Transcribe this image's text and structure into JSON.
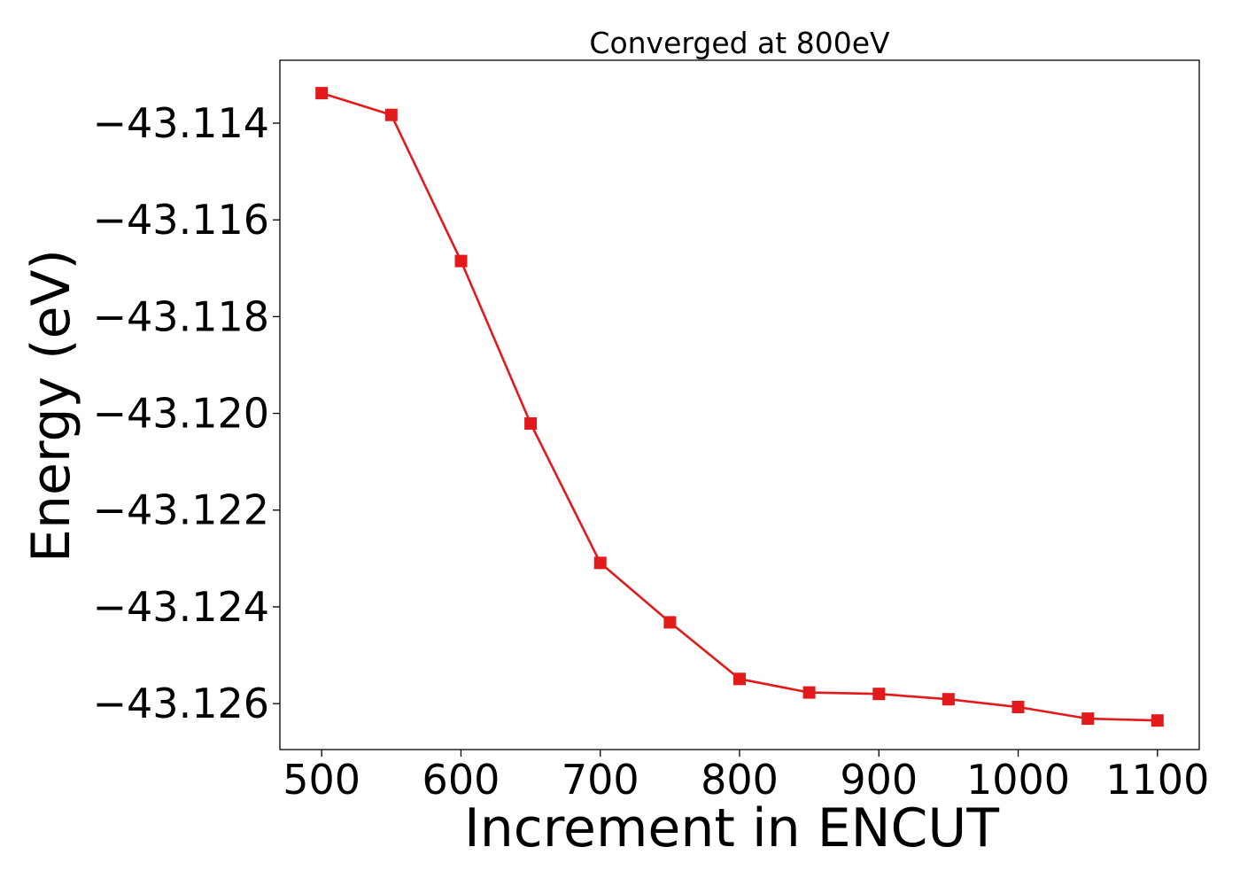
{
  "chart_data": {
    "type": "line",
    "title": "Converged at 800eV",
    "xlabel": "Increment in ENCUT",
    "ylabel": "Energy (eV)",
    "xlim": [
      470,
      1130
    ],
    "ylim": [
      -43.12695,
      -43.1127
    ],
    "xticks": [
      500,
      600,
      700,
      800,
      900,
      1000,
      1100
    ],
    "xtick_labels": [
      "500",
      "600",
      "700",
      "800",
      "900",
      "1000",
      "1100"
    ],
    "yticks": [
      -43.114,
      -43.116,
      -43.118,
      -43.12,
      -43.122,
      -43.124,
      -43.126
    ],
    "ytick_labels": [
      "−43.114",
      "−43.116",
      "−43.118",
      "−43.120",
      "−43.122",
      "−43.124",
      "−43.126"
    ],
    "grid": false,
    "legend": "none",
    "series": [
      {
        "color": "#e31a1c",
        "marker": "square",
        "x": [
          500,
          550,
          600,
          650,
          700,
          750,
          800,
          850,
          900,
          950,
          1000,
          1050,
          1100
        ],
        "y": [
          -43.11338,
          -43.11383,
          -43.11685,
          -43.12021,
          -43.12309,
          -43.12432,
          -43.12549,
          -43.12577,
          -43.1258,
          -43.12591,
          -43.12607,
          -43.12631,
          -43.12635
        ]
      }
    ]
  }
}
